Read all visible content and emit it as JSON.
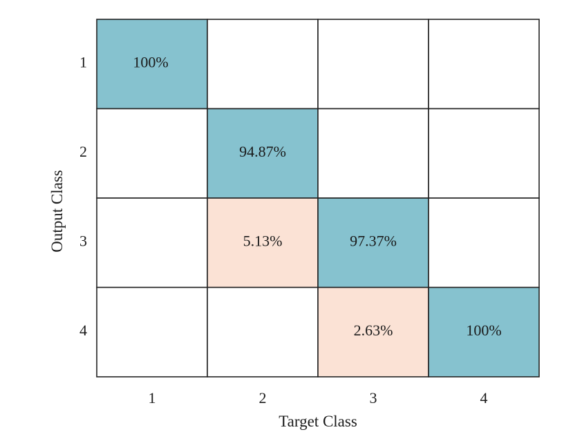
{
  "chart_data": {
    "type": "heatmap",
    "title": "",
    "xlabel": "Target Class",
    "ylabel": "Output Class",
    "x_categories": [
      "1",
      "2",
      "3",
      "4"
    ],
    "y_categories": [
      "1",
      "2",
      "3",
      "4"
    ],
    "values": [
      [
        100,
        null,
        null,
        null
      ],
      [
        null,
        94.87,
        null,
        null
      ],
      [
        null,
        5.13,
        97.37,
        null
      ],
      [
        null,
        null,
        2.63,
        100
      ]
    ],
    "labels": [
      [
        "100%",
        "",
        "",
        ""
      ],
      [
        "",
        "94.87%",
        "",
        ""
      ],
      [
        "",
        "5.13%",
        "97.37%",
        ""
      ],
      [
        "",
        "",
        "2.63%",
        "100%"
      ]
    ],
    "colors": {
      "diagonal": "#86c2cf",
      "off_diagonal": "#fbe2d5",
      "empty": "#ffffff",
      "grid": "#222222"
    },
    "grid": true,
    "legend": "none"
  }
}
